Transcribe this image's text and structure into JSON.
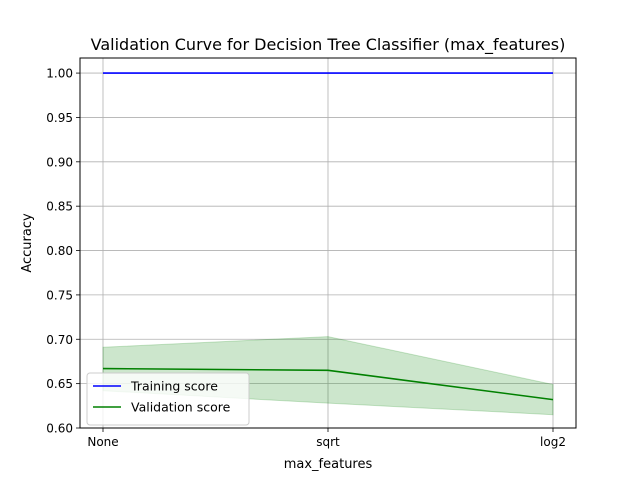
{
  "chart_data": {
    "type": "line",
    "title": "Validation Curve for Decision Tree Classifier (max_features)",
    "xlabel": "max_features",
    "ylabel": "Accuracy",
    "categories": [
      "None",
      "sqrt",
      "log2"
    ],
    "ylim": [
      0.6,
      1.017
    ],
    "yticks": [
      "0.60",
      "0.65",
      "0.70",
      "0.75",
      "0.80",
      "0.85",
      "0.90",
      "0.95",
      "1.00"
    ],
    "grid": true,
    "legend_position": "lower-left",
    "series": [
      {
        "name": "Training score",
        "color": "#0000ff",
        "values": [
          1.0,
          1.0,
          1.0
        ],
        "band_lower": [
          1.0,
          1.0,
          1.0
        ],
        "band_upper": [
          1.0,
          1.0,
          1.0
        ]
      },
      {
        "name": "Validation score",
        "color": "#008000",
        "values": [
          0.667,
          0.665,
          0.632
        ],
        "band_lower": [
          0.642,
          0.628,
          0.615
        ],
        "band_upper": [
          0.691,
          0.703,
          0.649
        ]
      }
    ]
  }
}
